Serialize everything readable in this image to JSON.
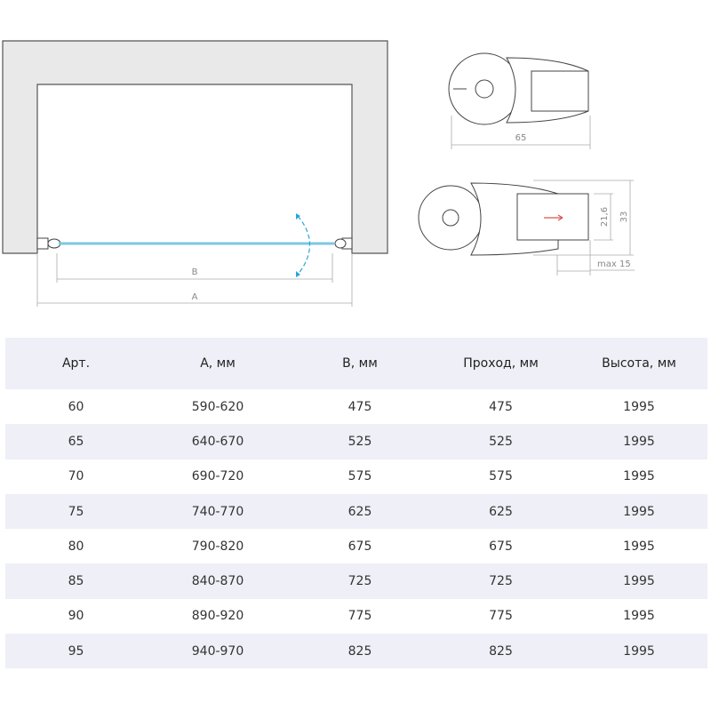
{
  "drawing": {
    "label_b": "B",
    "label_a": "A",
    "profile_top_width": "65",
    "profile_bottom_inner": "21,6",
    "profile_bottom_outer": "33",
    "profile_bottom_adjust": "max 15",
    "glass_color": "#7ec8e3",
    "arrow_color": "#2aa6d8",
    "direction_arrow_color": "#d9534f"
  },
  "table": {
    "headers": [
      "Арт.",
      "A, мм",
      "B, мм",
      "Проход, мм",
      "Высота, мм"
    ],
    "rows": [
      [
        "60",
        "590-620",
        "475",
        "475",
        "1995"
      ],
      [
        "65",
        "640-670",
        "525",
        "525",
        "1995"
      ],
      [
        "70",
        "690-720",
        "575",
        "575",
        "1995"
      ],
      [
        "75",
        "740-770",
        "625",
        "625",
        "1995"
      ],
      [
        "80",
        "790-820",
        "675",
        "675",
        "1995"
      ],
      [
        "85",
        "840-870",
        "725",
        "725",
        "1995"
      ],
      [
        "90",
        "890-920",
        "775",
        "775",
        "1995"
      ],
      [
        "95",
        "940-970",
        "825",
        "825",
        "1995"
      ]
    ]
  }
}
